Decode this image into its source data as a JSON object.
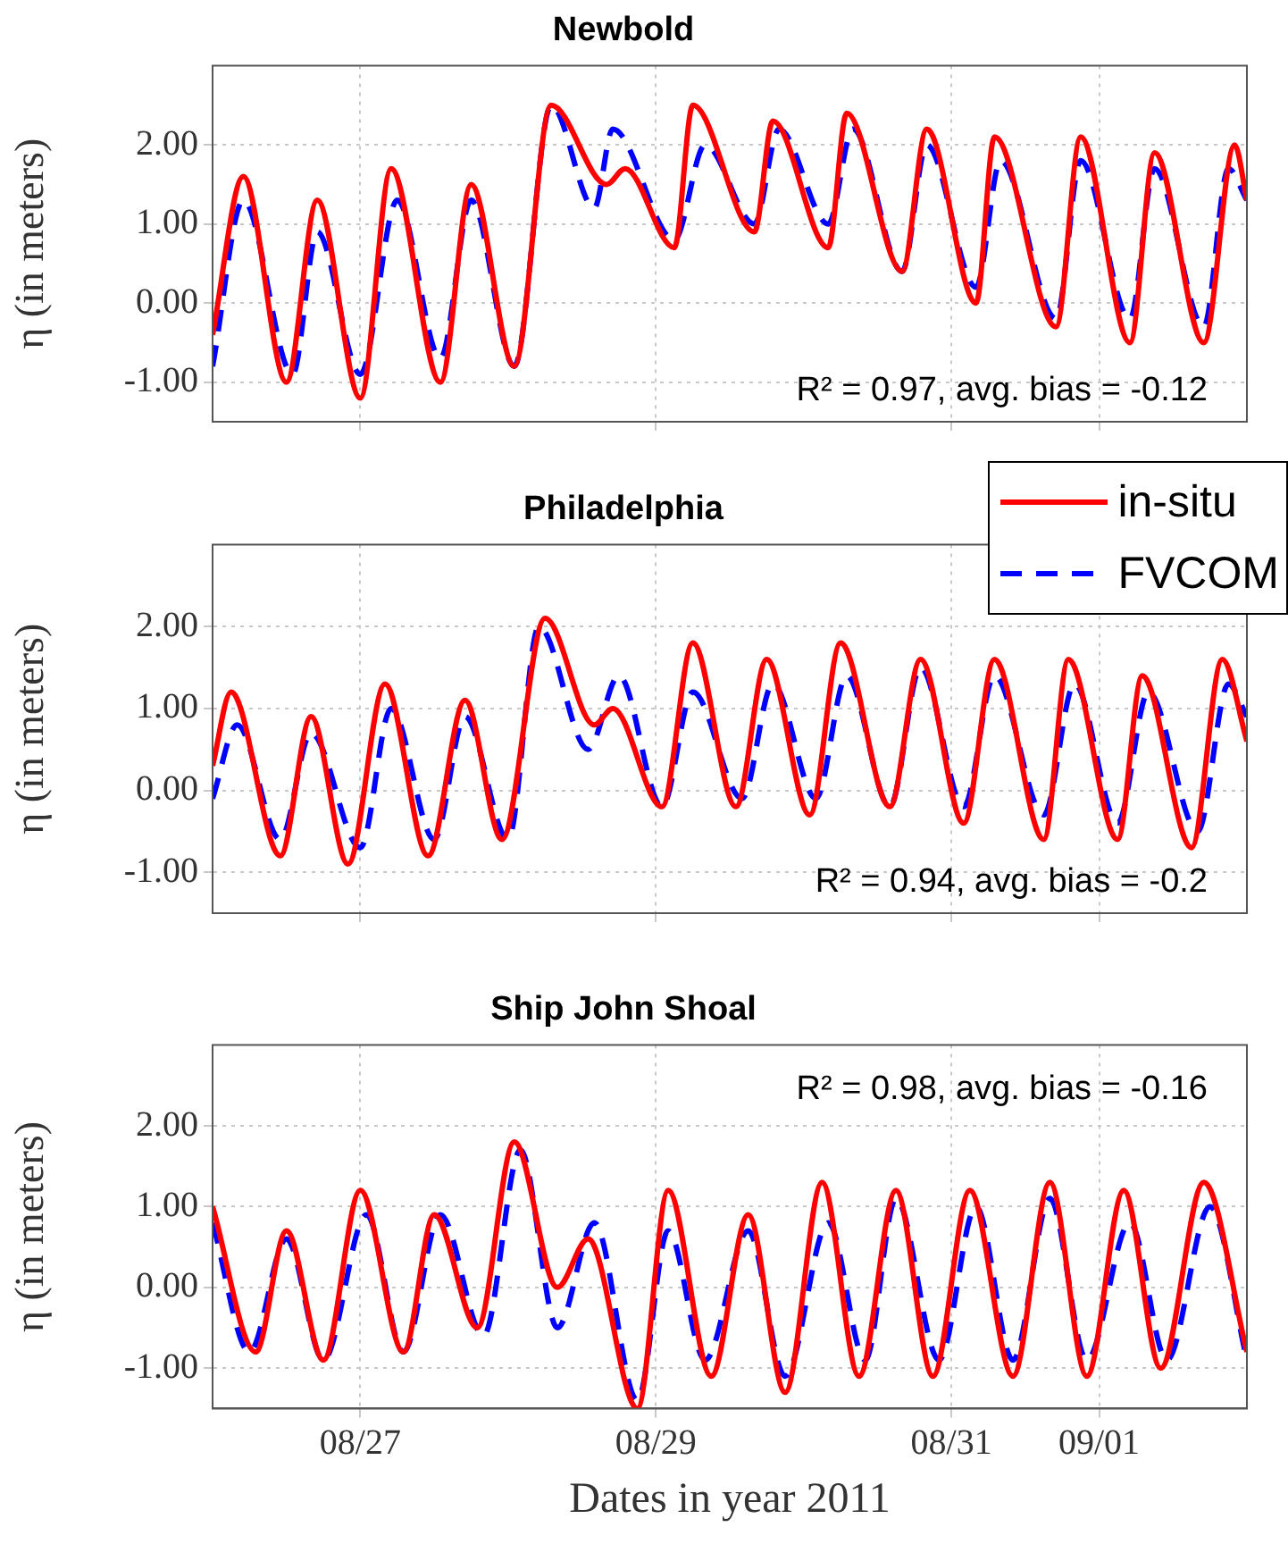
{
  "chart_data": [
    {
      "type": "line",
      "title": "Newbold",
      "ylabel": "η (in meters)",
      "xlim": [
        "2011-08-26T00:00",
        "2011-09-02T00:00"
      ],
      "xticks": [
        {
          "value": "2011-08-27T00:00",
          "label": null
        },
        {
          "value": "2011-08-29T00:00",
          "label": null
        },
        {
          "value": "2011-08-31T00:00",
          "label": null
        },
        {
          "value": "2011-09-01T00:00",
          "label": null
        }
      ],
      "ylim": [
        -1.5,
        3
      ],
      "yticks": [
        {
          "value": -1,
          "label": "-1.00"
        },
        {
          "value": 0,
          "label": "0.00"
        },
        {
          "value": 1,
          "label": "1.00"
        },
        {
          "value": 2,
          "label": "2.00"
        }
      ],
      "grid": true,
      "tick_labels": "y",
      "annotations": [
        "R² = 0.97, avg. bias = -0.12"
      ],
      "series": [
        {
          "color": "#ff0000",
          "line_style": "solid",
          "x": [
            "2011-08-26T00:00",
            "2011-08-26T05:00",
            "2011-08-26T12:00",
            "2011-08-26T17:00",
            "2011-08-27T00:00",
            "2011-08-27T05:00",
            "2011-08-27T13:00",
            "2011-08-27T18:00",
            "2011-08-28T01:00",
            "2011-08-28T07:00",
            "2011-08-28T16:00",
            "2011-08-28T19:00",
            "2011-08-29T03:00",
            "2011-08-29T06:00",
            "2011-08-29T16:00",
            "2011-08-29T19:00",
            "2011-08-30T04:00",
            "2011-08-30T07:00",
            "2011-08-30T16:00",
            "2011-08-30T20:00",
            "2011-08-31T04:00",
            "2011-08-31T07:00",
            "2011-08-31T17:00",
            "2011-08-31T21:00",
            "2011-09-01T05:00",
            "2011-09-01T09:00",
            "2011-09-01T17:00",
            "2011-09-01T22:00",
            "2011-09-02T00:00"
          ],
          "values": [
            -0.4,
            1.6,
            -1.0,
            1.3,
            -1.2,
            1.7,
            -1.0,
            1.5,
            -0.8,
            2.5,
            1.5,
            1.7,
            0.7,
            2.5,
            0.9,
            2.3,
            0.7,
            2.4,
            0.4,
            2.2,
            0.0,
            2.1,
            -0.3,
            2.1,
            -0.5,
            1.9,
            -0.5,
            2.0,
            1.3
          ]
        },
        {
          "color": "#0000ff",
          "line_style": "dashed",
          "x": [
            "2011-08-26T00:00",
            "2011-08-26T05:00",
            "2011-08-26T13:00",
            "2011-08-26T17:00",
            "2011-08-27T00:00",
            "2011-08-27T06:00",
            "2011-08-27T13:00",
            "2011-08-27T18:00",
            "2011-08-28T01:00",
            "2011-08-28T07:00",
            "2011-08-28T14:00",
            "2011-08-28T17:00",
            "2011-08-29T03:00",
            "2011-08-29T08:00",
            "2011-08-29T16:00",
            "2011-08-29T20:00",
            "2011-08-30T04:00",
            "2011-08-30T08:00",
            "2011-08-30T16:00",
            "2011-08-30T20:00",
            "2011-08-31T04:00",
            "2011-08-31T08:00",
            "2011-08-31T17:00",
            "2011-08-31T21:00",
            "2011-09-01T05:00",
            "2011-09-01T09:00",
            "2011-09-01T17:00",
            "2011-09-01T21:00",
            "2011-09-02T00:00"
          ],
          "values": [
            -0.8,
            1.3,
            -0.9,
            0.9,
            -0.9,
            1.3,
            -0.7,
            1.3,
            -0.8,
            2.5,
            1.2,
            2.2,
            0.8,
            2.0,
            1.0,
            2.2,
            1.0,
            2.2,
            0.4,
            2.0,
            0.2,
            1.8,
            -0.2,
            1.8,
            -0.2,
            1.7,
            -0.3,
            1.7,
            1.3
          ]
        }
      ]
    },
    {
      "type": "line",
      "title": "Philadelphia",
      "ylabel": "η (in meters)",
      "xlim": [
        "2011-08-26T00:00",
        "2011-09-02T00:00"
      ],
      "xticks": [
        {
          "value": "2011-08-27T00:00",
          "label": null
        },
        {
          "value": "2011-08-29T00:00",
          "label": null
        },
        {
          "value": "2011-08-31T00:00",
          "label": null
        },
        {
          "value": "2011-09-01T00:00",
          "label": null
        }
      ],
      "ylim": [
        -1.5,
        3
      ],
      "yticks": [
        {
          "value": -1,
          "label": "-1.00"
        },
        {
          "value": 0,
          "label": "0.00"
        },
        {
          "value": 1,
          "label": "1.00"
        },
        {
          "value": 2,
          "label": "2.00"
        }
      ],
      "grid": true,
      "tick_labels": "y",
      "legend": "top right",
      "annotations": [
        "R² = 0.94, avg. bias = -0.2"
      ],
      "series": [
        {
          "name": "in-situ",
          "color": "#ff0000",
          "line_style": "solid",
          "x": [
            "2011-08-26T00:00",
            "2011-08-26T03:00",
            "2011-08-26T11:00",
            "2011-08-26T16:00",
            "2011-08-26T22:00",
            "2011-08-27T04:00",
            "2011-08-27T11:00",
            "2011-08-27T17:00",
            "2011-08-27T23:00",
            "2011-08-28T06:00",
            "2011-08-28T14:00",
            "2011-08-28T17:00",
            "2011-08-29T01:00",
            "2011-08-29T06:00",
            "2011-08-29T13:00",
            "2011-08-29T18:00",
            "2011-08-30T01:00",
            "2011-08-30T06:00",
            "2011-08-30T14:00",
            "2011-08-30T19:00",
            "2011-08-31T02:00",
            "2011-08-31T07:00",
            "2011-08-31T15:00",
            "2011-08-31T19:00",
            "2011-09-01T03:00",
            "2011-09-01T07:00",
            "2011-09-01T15:00",
            "2011-09-01T20:00",
            "2011-09-02T00:00"
          ],
          "values": [
            0.3,
            1.2,
            -0.8,
            0.9,
            -0.9,
            1.3,
            -0.8,
            1.1,
            -0.6,
            2.1,
            0.8,
            1.0,
            -0.2,
            1.8,
            -0.2,
            1.6,
            -0.3,
            1.8,
            -0.2,
            1.6,
            -0.4,
            1.6,
            -0.6,
            1.6,
            -0.6,
            1.4,
            -0.7,
            1.6,
            0.6
          ]
        },
        {
          "name": "FVCOM",
          "color": "#0000ff",
          "line_style": "dashed",
          "x": [
            "2011-08-26T00:00",
            "2011-08-26T04:00",
            "2011-08-26T11:00",
            "2011-08-26T16:00",
            "2011-08-27T00:00",
            "2011-08-27T05:00",
            "2011-08-27T12:00",
            "2011-08-27T17:00",
            "2011-08-28T00:00",
            "2011-08-28T05:00",
            "2011-08-28T13:00",
            "2011-08-28T18:00",
            "2011-08-29T01:00",
            "2011-08-29T06:00",
            "2011-08-29T14:00",
            "2011-08-29T19:00",
            "2011-08-30T02:00",
            "2011-08-30T07:00",
            "2011-08-30T14:00",
            "2011-08-30T19:00",
            "2011-08-31T02:00",
            "2011-08-31T07:00",
            "2011-08-31T15:00",
            "2011-08-31T20:00",
            "2011-09-01T03:00",
            "2011-09-01T08:00",
            "2011-09-01T16:00",
            "2011-09-01T21:00",
            "2011-09-02T00:00"
          ],
          "values": [
            -0.1,
            0.8,
            -0.6,
            0.7,
            -0.7,
            1.0,
            -0.6,
            0.9,
            -0.6,
            2.0,
            0.5,
            1.4,
            -0.2,
            1.2,
            -0.1,
            1.3,
            -0.1,
            1.4,
            -0.2,
            1.5,
            -0.2,
            1.4,
            -0.3,
            1.3,
            -0.4,
            1.2,
            -0.5,
            1.3,
            0.9
          ]
        }
      ]
    },
    {
      "type": "line",
      "title": "Ship John Shoal",
      "ylabel": "η (in meters)",
      "xlabel": "Dates in year 2011",
      "xlim": [
        "2011-08-26T00:00",
        "2011-09-02T00:00"
      ],
      "xticks": [
        {
          "value": "2011-08-27T00:00",
          "label": "08/27"
        },
        {
          "value": "2011-08-29T00:00",
          "label": "08/29"
        },
        {
          "value": "2011-08-31T00:00",
          "label": "08/31"
        },
        {
          "value": "2011-09-01T00:00",
          "label": "09/01"
        }
      ],
      "ylim": [
        -1.5,
        3
      ],
      "yticks": [
        {
          "value": -1,
          "label": "-1.00"
        },
        {
          "value": 0,
          "label": "0.00"
        },
        {
          "value": 1,
          "label": "1.00"
        },
        {
          "value": 2,
          "label": "2.00"
        }
      ],
      "grid": true,
      "annotations": [
        "R² = 0.98, avg. bias = -0.16"
      ],
      "series": [
        {
          "color": "#ff0000",
          "line_style": "solid",
          "x": [
            "2011-08-26T00:00",
            "2011-08-26T07:00",
            "2011-08-26T12:00",
            "2011-08-26T18:00",
            "2011-08-27T00:00",
            "2011-08-27T07:00",
            "2011-08-27T12:00",
            "2011-08-27T19:00",
            "2011-08-28T01:00",
            "2011-08-28T08:00",
            "2011-08-28T13:00",
            "2011-08-28T21:00",
            "2011-08-29T02:00",
            "2011-08-29T09:00",
            "2011-08-29T15:00",
            "2011-08-29T21:00",
            "2011-08-30T03:00",
            "2011-08-30T09:00",
            "2011-08-30T15:00",
            "2011-08-30T21:00",
            "2011-08-31T03:00",
            "2011-08-31T10:00",
            "2011-08-31T16:00",
            "2011-08-31T22:00",
            "2011-09-01T04:00",
            "2011-09-01T10:00",
            "2011-09-01T17:00",
            "2011-09-02T00:00"
          ],
          "values": [
            1.0,
            -0.8,
            0.7,
            -0.9,
            1.2,
            -0.8,
            0.9,
            -0.5,
            1.8,
            0.0,
            0.6,
            -1.5,
            1.2,
            -1.1,
            0.9,
            -1.3,
            1.3,
            -1.1,
            1.2,
            -1.1,
            1.2,
            -1.1,
            1.3,
            -1.1,
            1.2,
            -1.0,
            1.3,
            -0.8
          ]
        },
        {
          "color": "#0000ff",
          "line_style": "dashed",
          "x": [
            "2011-08-26T00:00",
            "2011-08-26T06:00",
            "2011-08-26T12:00",
            "2011-08-26T18:00",
            "2011-08-27T01:00",
            "2011-08-27T07:00",
            "2011-08-27T13:00",
            "2011-08-27T20:00",
            "2011-08-28T02:00",
            "2011-08-28T08:00",
            "2011-08-28T14:00",
            "2011-08-28T21:00",
            "2011-08-29T02:00",
            "2011-08-29T08:00",
            "2011-08-29T15:00",
            "2011-08-29T21:00",
            "2011-08-30T04:00",
            "2011-08-30T10:00",
            "2011-08-30T15:00",
            "2011-08-30T22:00",
            "2011-08-31T04:00",
            "2011-08-31T10:00",
            "2011-08-31T16:00",
            "2011-08-31T22:00",
            "2011-09-01T05:00",
            "2011-09-01T11:00",
            "2011-09-01T18:00",
            "2011-09-02T00:00"
          ],
          "values": [
            0.8,
            -0.8,
            0.6,
            -0.9,
            0.9,
            -0.8,
            0.9,
            -0.6,
            1.7,
            -0.5,
            0.8,
            -1.4,
            0.7,
            -0.9,
            0.7,
            -1.1,
            0.8,
            -0.9,
            1.1,
            -0.9,
            1.0,
            -0.9,
            1.1,
            -0.9,
            0.8,
            -0.9,
            1.0,
            -0.9
          ]
        }
      ]
    }
  ]
}
